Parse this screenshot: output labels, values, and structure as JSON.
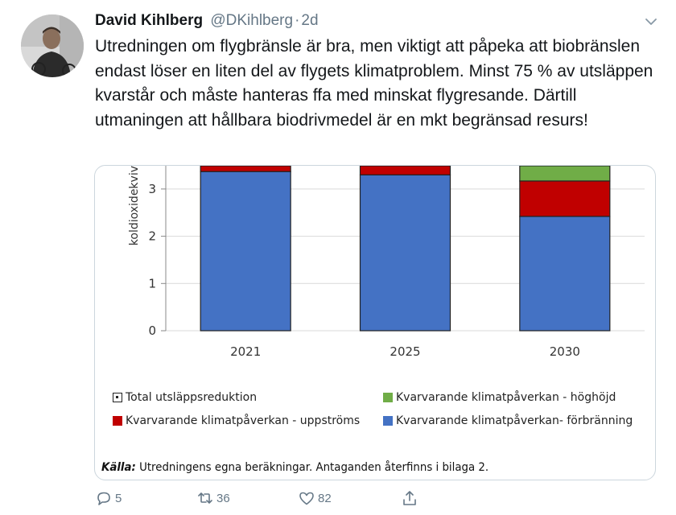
{
  "tweet": {
    "author_name": "David Kihlberg",
    "author_handle": "@DKihlberg",
    "time_separator": "·",
    "timestamp": "2d",
    "text": "Utredningen om flygbränsle är bra, men viktigt att påpeka att biobränslen endast löser en liten del av flygets klimatproblem. Minst 75 % av utsläppen kvarstår och måste hanteras ffa med minskat flygresande. Därtill utmaningen att hållbara biodrivmedel är en mkt begränsad resurs!",
    "avatar_icon": "person-photo-icon",
    "menu_icon": "chevron-down-icon"
  },
  "chart_data": {
    "type": "bar",
    "stacked": true,
    "ylabel": "koldioxidekviv",
    "ylim": [
      0,
      3.5
    ],
    "yticks": [
      "0",
      "1",
      "2",
      "3"
    ],
    "categories": [
      "2021",
      "2025",
      "2030"
    ],
    "series": [
      {
        "name": "Kvarvarande klimatpåverkan- förbränning",
        "color": "#4472c4",
        "values": [
          3.37,
          3.3,
          2.42
        ]
      },
      {
        "name": "Kvarvarande klimatpåverkan - uppströms",
        "color": "#c00000",
        "values": [
          0.13,
          0.2,
          0.75
        ]
      },
      {
        "name": "Kvarvarande klimatpåverkan - höghöjd",
        "color": "#70ad47",
        "values": [
          0,
          0,
          0.33
        ]
      },
      {
        "name": "Total utsläppsreduktion",
        "color": "#ffffff",
        "values": [
          0,
          0,
          0
        ]
      }
    ],
    "legend": [
      {
        "label": "Total utsläppsreduktion",
        "style": "hollow"
      },
      {
        "label": "Kvarvarande klimatpåverkan - höghöjd",
        "color": "#70ad47"
      },
      {
        "label": "Kvarvarande klimatpåverkan - uppströms",
        "color": "#c00000"
      },
      {
        "label": "Kvarvarande klimatpåverkan- förbränning",
        "color": "#4472c4"
      }
    ],
    "grid": true,
    "legend_placement": "bottom",
    "source_label": "Källa:",
    "source_text": "Utredningens egna beräkningar. Antaganden återfinns i bilaga 2."
  },
  "actions": {
    "reply_count": "5",
    "retweet_count": "36",
    "like_count": "82",
    "reply_icon": "reply-icon",
    "retweet_icon": "retweet-icon",
    "like_icon": "heart-icon",
    "share_icon": "share-icon"
  },
  "colors": {
    "text_primary": "#14171a",
    "text_secondary": "#657786",
    "border": "#ccd6dd"
  }
}
